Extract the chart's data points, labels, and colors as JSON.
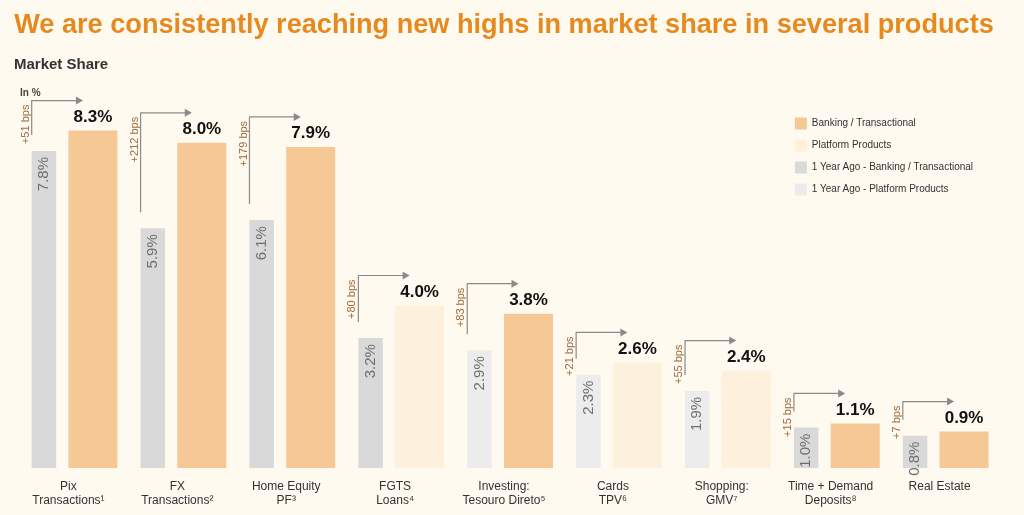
{
  "chart_data": {
    "type": "bar",
    "title": "We are consistently reaching new highs in market share in several products",
    "subtitle": "Market Share",
    "ylabel": "In %",
    "categories": [
      "Pix\nTransactions¹",
      "FX\nTransactions²",
      "Home Equity\nPF³",
      "FGTS\nLoans⁴",
      "Investing:\nTesouro Direto⁵",
      "Cards\nTPV⁶",
      "Shopping:\nGMV⁷",
      "Time + Demand\nDeposits⁸",
      "Real Estate"
    ],
    "series": [
      {
        "name": "Banking / Transactional",
        "color": "#f5c896",
        "values": [
          8.3,
          8.0,
          7.9,
          null,
          3.8,
          null,
          null,
          1.1,
          0.9
        ],
        "value_labels": [
          "8.3%",
          "8.0%",
          "7.9%",
          null,
          "3.8%",
          null,
          null,
          "1.1%",
          "0.9%"
        ]
      },
      {
        "name": "Platform Products",
        "color": "#fdf0dc",
        "values": [
          null,
          null,
          null,
          4.0,
          null,
          2.6,
          2.4,
          null,
          null
        ],
        "value_labels": [
          null,
          null,
          null,
          "4.0%",
          null,
          "2.6%",
          "2.4%",
          null,
          null
        ]
      },
      {
        "name": "1 Year Ago - Banking / Transactional",
        "color": "#d9d9d9",
        "values": [
          7.8,
          5.9,
          6.1,
          3.2,
          null,
          null,
          null,
          1.0,
          0.8
        ],
        "value_labels": [
          "7.8%",
          "5.9%",
          "6.1%",
          "3.2%",
          null,
          null,
          null,
          "1.0%",
          "0.8%"
        ]
      },
      {
        "name": "1 Year Ago - Platform Products",
        "color": "#ececec",
        "values": [
          null,
          null,
          null,
          null,
          2.9,
          2.3,
          1.9,
          null,
          null
        ],
        "value_labels": [
          null,
          null,
          null,
          null,
          "2.9%",
          "2.3%",
          "1.9%",
          null,
          null
        ]
      }
    ],
    "annotations": [
      "+51 bps",
      "+212 bps",
      "+179 bps",
      "+80 bps",
      "+83 bps",
      "+21 bps",
      "+55 bps",
      "+15 bps",
      "+7 bps"
    ],
    "legend": "top right",
    "tick_labels": "x",
    "grid": false
  }
}
